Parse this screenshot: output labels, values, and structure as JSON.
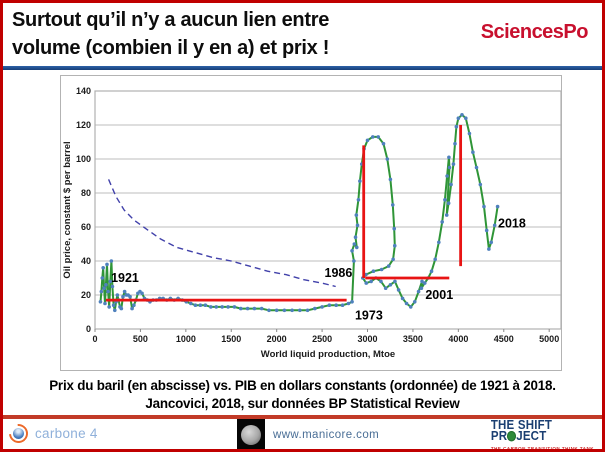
{
  "header": {
    "title_line1": "Surtout qu’il n’y a aucun lien entre",
    "title_line2": "volume (combien il y en a) et prix !",
    "logo_text": "SciencesPo"
  },
  "chart_data": {
    "type": "line",
    "xlabel": "World liquid production, Mtoe",
    "ylabel": "Oil price, constant $ per barrel",
    "xlim": [
      0,
      5130
    ],
    "ylim": [
      0,
      140
    ],
    "x_ticks": [
      0,
      500,
      1000,
      1500,
      2000,
      2500,
      3000,
      3500,
      4000,
      4500,
      5000
    ],
    "y_ticks": [
      0,
      20,
      40,
      60,
      80,
      100,
      120,
      140
    ],
    "grid": "horizontal",
    "colors": {
      "line": "#2f9537",
      "marker": "#4f81bd",
      "dashed": "#4141aa",
      "annotation": "#e81414",
      "gridline": "#bdbdbd",
      "frame": "#b0b0b0",
      "text": "#1a1a1a"
    },
    "series": [
      {
        "name": "oil-price-vs-production-1921-2018",
        "style": "solid-with-markers",
        "points": [
          [
            60,
            16
          ],
          [
            70,
            22
          ],
          [
            80,
            30
          ],
          [
            90,
            36
          ],
          [
            100,
            24
          ],
          [
            110,
            15
          ],
          [
            120,
            26
          ],
          [
            132,
            38
          ],
          [
            144,
            22
          ],
          [
            156,
            13
          ],
          [
            168,
            28
          ],
          [
            180,
            40
          ],
          [
            192,
            25
          ],
          [
            205,
            14
          ],
          [
            218,
            11
          ],
          [
            232,
            16
          ],
          [
            246,
            20
          ],
          [
            260,
            17
          ],
          [
            275,
            13
          ],
          [
            290,
            12
          ],
          [
            308,
            19
          ],
          [
            326,
            22
          ],
          [
            345,
            20
          ],
          [
            365,
            20
          ],
          [
            386,
            19
          ],
          [
            408,
            12
          ],
          [
            428,
            14
          ],
          [
            450,
            17
          ],
          [
            472,
            21
          ],
          [
            495,
            22
          ],
          [
            518,
            21
          ],
          [
            545,
            18
          ],
          [
            575,
            17
          ],
          [
            605,
            16
          ],
          [
            640,
            17
          ],
          [
            675,
            17
          ],
          [
            712,
            18
          ],
          [
            750,
            18
          ],
          [
            790,
            17
          ],
          [
            830,
            18
          ],
          [
            872,
            17
          ],
          [
            915,
            18
          ],
          [
            960,
            17
          ],
          [
            1005,
            16
          ],
          [
            1055,
            15
          ],
          [
            1105,
            14
          ],
          [
            1160,
            14
          ],
          [
            1215,
            14
          ],
          [
            1275,
            13
          ],
          [
            1335,
            13
          ],
          [
            1400,
            13
          ],
          [
            1465,
            13
          ],
          [
            1535,
            13
          ],
          [
            1605,
            12
          ],
          [
            1680,
            12
          ],
          [
            1755,
            12
          ],
          [
            1835,
            12
          ],
          [
            1915,
            11
          ],
          [
            2000,
            11
          ],
          [
            2085,
            11
          ],
          [
            2170,
            11
          ],
          [
            2255,
            11
          ],
          [
            2340,
            11
          ],
          [
            2420,
            12
          ],
          [
            2500,
            13
          ],
          [
            2580,
            14
          ],
          [
            2655,
            14
          ],
          [
            2725,
            14
          ],
          [
            2790,
            15
          ],
          [
            2830,
            16
          ],
          [
            2850,
            40
          ],
          [
            2830,
            46
          ],
          [
            2855,
            50
          ],
          [
            2882,
            48
          ],
          [
            2868,
            54
          ],
          [
            2890,
            61
          ],
          [
            2877,
            67
          ],
          [
            2900,
            76
          ],
          [
            2916,
            87
          ],
          [
            2937,
            97
          ],
          [
            2962,
            106
          ],
          [
            3000,
            111
          ],
          [
            3058,
            113
          ],
          [
            3118,
            113
          ],
          [
            3176,
            109
          ],
          [
            3218,
            100
          ],
          [
            3252,
            88
          ],
          [
            3278,
            73
          ],
          [
            3294,
            59
          ],
          [
            3300,
            49
          ],
          [
            3282,
            41
          ],
          [
            3233,
            37
          ],
          [
            3155,
            35
          ],
          [
            3065,
            34
          ],
          [
            2982,
            32
          ],
          [
            2948,
            30
          ],
          [
            2986,
            27
          ],
          [
            3040,
            28
          ],
          [
            3092,
            30
          ],
          [
            3148,
            28
          ],
          [
            3200,
            24
          ],
          [
            3252,
            26
          ],
          [
            3302,
            28
          ],
          [
            3342,
            23
          ],
          [
            3386,
            18
          ],
          [
            3430,
            15
          ],
          [
            3476,
            13
          ],
          [
            3520,
            16
          ],
          [
            3562,
            22
          ],
          [
            3600,
            28
          ],
          [
            3593,
            24
          ],
          [
            3630,
            27
          ],
          [
            3668,
            30
          ],
          [
            3705,
            34
          ],
          [
            3745,
            41
          ],
          [
            3785,
            51
          ],
          [
            3822,
            63
          ],
          [
            3852,
            76
          ],
          [
            3876,
            90
          ],
          [
            3896,
            101
          ],
          [
            3903,
            95
          ],
          [
            3872,
            67
          ],
          [
            3893,
            74
          ],
          [
            3920,
            85
          ],
          [
            3946,
            97
          ],
          [
            3963,
            109
          ],
          [
            3978,
            119
          ],
          [
            4000,
            124
          ],
          [
            4040,
            126
          ],
          [
            4082,
            124
          ],
          [
            4122,
            115
          ],
          [
            4160,
            104
          ],
          [
            4200,
            95
          ],
          [
            4242,
            85
          ],
          [
            4282,
            72
          ],
          [
            4312,
            58
          ],
          [
            4336,
            47
          ],
          [
            4362,
            51
          ],
          [
            4400,
            61
          ],
          [
            4432,
            72
          ]
        ]
      },
      {
        "name": "constant-value-dashed-curve",
        "style": "dashed",
        "points": [
          [
            150,
            88
          ],
          [
            230,
            78
          ],
          [
            320,
            70
          ],
          [
            430,
            64
          ],
          [
            560,
            59
          ],
          [
            720,
            53
          ],
          [
            900,
            48
          ],
          [
            1100,
            45
          ],
          [
            1300,
            42
          ],
          [
            1500,
            40
          ],
          [
            1700,
            37
          ],
          [
            1900,
            34
          ],
          [
            2100,
            32
          ],
          [
            2300,
            29
          ],
          [
            2500,
            27
          ],
          [
            2650,
            25
          ]
        ]
      }
    ],
    "annotations": {
      "year_labels": [
        {
          "text": "1921",
          "x": 330,
          "y": 30
        },
        {
          "text": "1973",
          "x": 3015,
          "y": 8
        },
        {
          "text": "1986",
          "x": 2680,
          "y": 33
        },
        {
          "text": "2001",
          "x": 3790,
          "y": 20
        },
        {
          "text": "2018",
          "x": 4590,
          "y": 62
        }
      ],
      "red_lines": [
        {
          "orient": "h",
          "y": 17,
          "x1": 120,
          "x2": 2770
        },
        {
          "orient": "v",
          "x": 2958,
          "y1": 30,
          "y2": 108
        },
        {
          "orient": "h",
          "y": 30,
          "x1": 2975,
          "x2": 3900
        },
        {
          "orient": "v",
          "x": 4025,
          "y1": 37,
          "y2": 120
        }
      ]
    }
  },
  "caption": {
    "line1": "Prix du baril (en abscisse) vs. PIB en dollars constants (ordonnée) de 1921 à 2018.",
    "line2": "Jancovici, 2018, sur données BP Statistical Review"
  },
  "footer": {
    "carbone4_text": "carbone 4",
    "manicore_text": "www.manicore.com",
    "shift_line1": "THE SHIFT",
    "shift_line2_pre": "PR",
    "shift_line2_post": "JECT",
    "shift_tagline": "THE CARBON TRANSITION THINK TANK"
  }
}
